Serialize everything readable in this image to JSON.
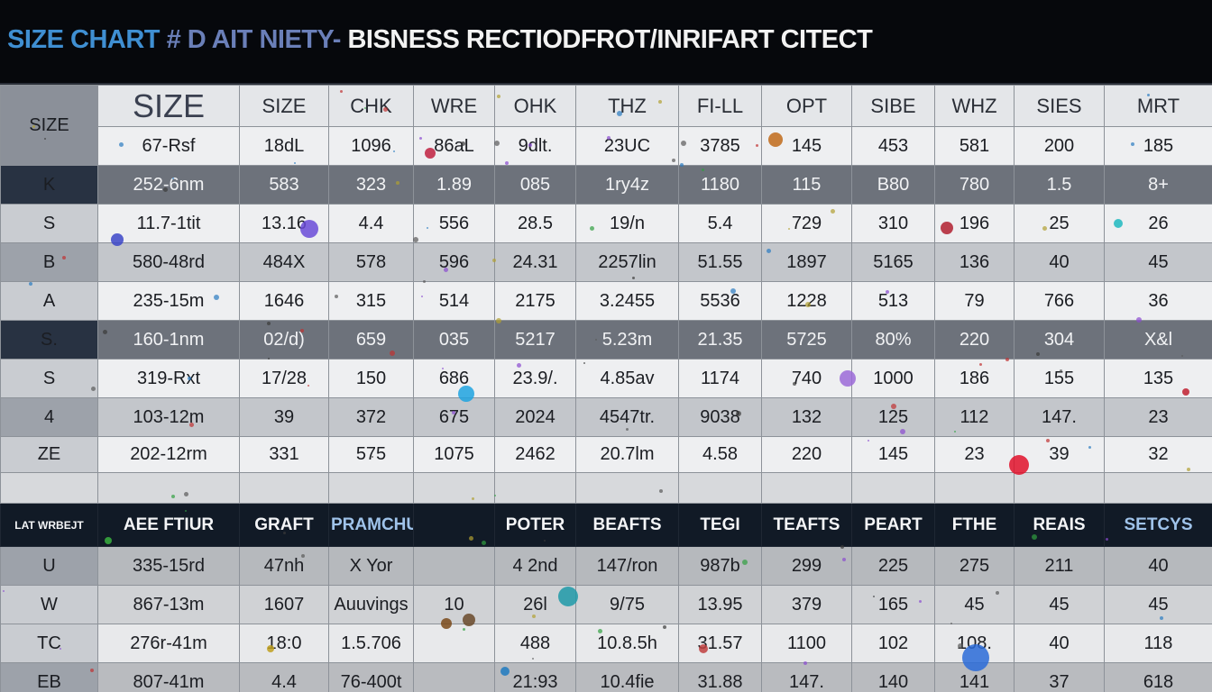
{
  "title": {
    "part1": "SIZE CHART",
    "part2": "# D AIT NIETY-",
    "part3": "BISNESS RECTIODFROT/INRIFART CITECT"
  },
  "header": {
    "side": "SIZE",
    "cols": [
      "SIZE",
      "SIZE",
      "CHK",
      "WRE",
      "OHK",
      "THZ",
      "FI-LL",
      "OPT",
      "SIBE",
      "WHZ",
      "SIES",
      "MRT"
    ]
  },
  "subheader": [
    "67-Rsf",
    "18dL",
    "1096",
    "86aL",
    "9dlt.",
    "23UC",
    "3785",
    "145",
    "453",
    "581",
    "200",
    "185"
  ],
  "rows": [
    {
      "side": "K",
      "cells": [
        "252-6nm",
        "583",
        "323",
        "1.89",
        "085",
        "1ry4z",
        "1180",
        "115",
        "B80",
        "780",
        "1.5",
        "8+"
      ]
    },
    {
      "side": "S",
      "cells": [
        "11.7-1tit",
        "13.16",
        "4.4",
        "556",
        "28.5",
        "19/n",
        "5.4",
        "729",
        "310",
        "196",
        "25",
        "26"
      ]
    },
    {
      "side": "B",
      "cells": [
        "580-48rd",
        "484X",
        "578",
        "596",
        "24.31",
        "2257lin",
        "51.55",
        "1897",
        "5165",
        "136",
        "40",
        "45"
      ]
    },
    {
      "side": "A",
      "cells": [
        "235-15m",
        "1646",
        "315",
        "514",
        "2175",
        "3.2455",
        "5536",
        "1228",
        "513",
        "79",
        "766",
        "36"
      ]
    },
    {
      "side": "S.",
      "cells": [
        "160-1nm",
        "02/d)",
        "659",
        "035",
        "5217",
        "5.23m",
        "21.35",
        "5725",
        "80%",
        "220",
        "304",
        "X&l"
      ]
    },
    {
      "side": "S",
      "cells": [
        "319-Rxt",
        "17/28",
        "150",
        "686",
        "23.9/.",
        "4.85av",
        "1174",
        "740",
        "1000",
        "186",
        "155",
        "135"
      ]
    },
    {
      "side": "4",
      "cells": [
        "103-12m",
        "39",
        "372",
        "675",
        "2024",
        "4547tr.",
        "9038",
        "132",
        "125",
        "112",
        "147.",
        "23"
      ]
    },
    {
      "side": "ZE",
      "cells": [
        "202-12rm",
        "331",
        "575",
        "1075",
        "2462",
        "20.7lm",
        "4.58",
        "220",
        "145",
        "23",
        "39",
        "32"
      ]
    }
  ],
  "band": {
    "side": "LAT WRBEJT",
    "cols": [
      "AEE FTIUR",
      "GRAFT",
      "PRAMCHULLTS",
      "",
      "POTER",
      "BEAFTS",
      "TEGI",
      "TEAFTS",
      "PEART",
      "FTHE",
      "REAIS",
      "SETCYS"
    ]
  },
  "lower_rows": [
    {
      "side": "U",
      "cells": [
        "335-15rd",
        "47nh",
        "X Yor",
        "",
        "4 2nd",
        "147/ron",
        "987b",
        "299",
        "225",
        "275",
        "211",
        "40"
      ]
    },
    {
      "side": "W",
      "cells": [
        "867-13m",
        "1607",
        "Auuvings",
        "10",
        "26l",
        "9/75",
        "13.95",
        "379",
        "165",
        "45",
        "45",
        "45"
      ]
    },
    {
      "side": "TC",
      "cells": [
        "276r-41m",
        "18:0",
        "1.5.706",
        "",
        "488",
        "10.8.5h",
        "31.57",
        "1100",
        "102",
        "108.",
        "40",
        "118"
      ]
    },
    {
      "side": "EB",
      "cells": [
        "807-41m",
        "4.4",
        "76-400t",
        "",
        "21:93",
        "10.4fie",
        "31.88",
        "147.",
        "140",
        "141",
        "37",
        "618"
      ]
    }
  ],
  "colors": {
    "title_blue": "#3f8fd2",
    "band_dark": "#111a26",
    "side_dark": "#283242"
  }
}
